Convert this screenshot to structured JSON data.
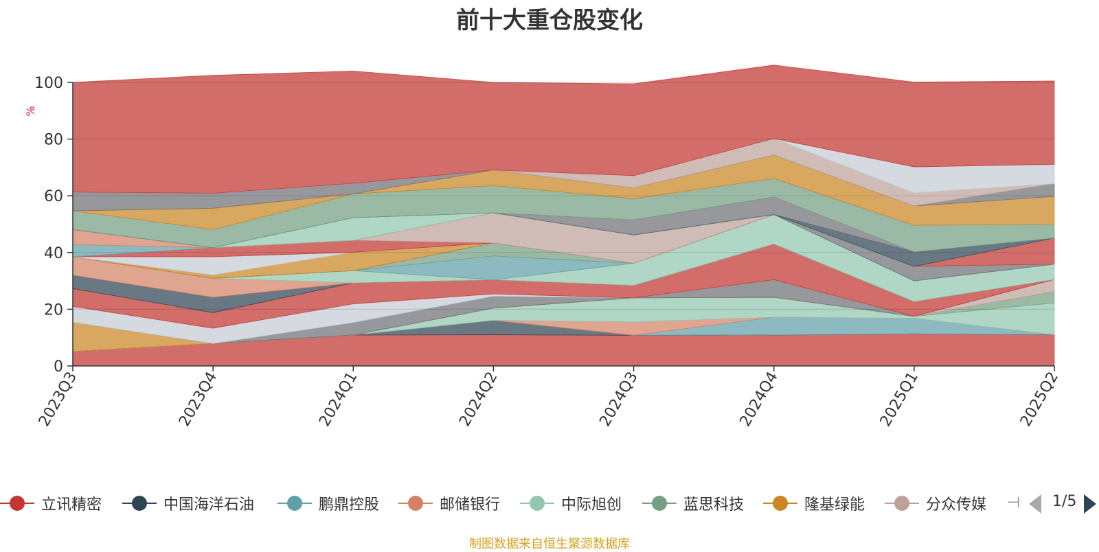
{
  "chart_data": {
    "type": "area",
    "stacked": true,
    "title": "前十大重仓股变化",
    "ylabel": "%",
    "ylim": [
      0,
      100
    ],
    "yticks": [
      0,
      20,
      40,
      60,
      80,
      100
    ],
    "grid": true,
    "categories": [
      "2023Q3",
      "2023Q4",
      "2024Q1",
      "2024Q2",
      "2024Q3",
      "2024Q4",
      "2025Q1",
      "2025Q2"
    ],
    "series": [
      {
        "name": "立讯精密",
        "color": "#c23531",
        "values": [
          5.1,
          7.9,
          10.9,
          11.0,
          10.8,
          10.9,
          11.3,
          11.0
        ]
      },
      {
        "name": "中国海洋石油",
        "color": "#2f4554",
        "values": [
          0,
          0,
          0,
          5.1,
          0,
          0,
          0,
          0
        ]
      },
      {
        "name": "鹏鼎控股",
        "color": "#61a0a8",
        "values": [
          0,
          0,
          0,
          0,
          0,
          6.3,
          5.5,
          0
        ]
      },
      {
        "name": "邮储银行",
        "color": "#d48265",
        "values": [
          0,
          0,
          0,
          0,
          4.7,
          0,
          0,
          0
        ]
      },
      {
        "name": "中际旭创",
        "color": "#91c7ae",
        "values": [
          0,
          0,
          0,
          4.3,
          8.5,
          7.0,
          0.7,
          11.2
        ]
      },
      {
        "name": "蓝思科技",
        "color": "#749f83",
        "values": [
          0,
          0,
          0,
          0,
          0,
          0,
          0,
          4.0
        ]
      },
      {
        "name": "隆基绿能",
        "color": "#ca8622",
        "values": [
          10.3,
          0,
          0,
          0,
          0,
          0,
          0,
          0
        ]
      },
      {
        "name": "分众传媒",
        "color": "#bda29a",
        "values": [
          0,
          0,
          0,
          0,
          0,
          0,
          0,
          4.3
        ]
      },
      {
        "name": "",
        "color": "#6e7074",
        "values": [
          0,
          0,
          4.4,
          4.2,
          0,
          6.2,
          0,
          0
        ]
      },
      {
        "name": "",
        "color": "#c4ccd3",
        "values": [
          5.6,
          5.4,
          6.6,
          0.8,
          0,
          0,
          0,
          0
        ]
      },
      {
        "name": "",
        "color": "#c23531",
        "values": [
          6.3,
          5.5,
          7.4,
          5.0,
          4.4,
          12.6,
          5.2,
          0
        ]
      },
      {
        "name": "",
        "color": "#2f4554",
        "values": [
          4.7,
          5.4,
          0,
          0,
          0,
          0,
          0,
          0
        ]
      },
      {
        "name": "",
        "color": "#d48265",
        "values": [
          6.5,
          6.7,
          0,
          0,
          0,
          0,
          0,
          0
        ]
      },
      {
        "name": "",
        "color": "#91c7ae",
        "values": [
          0,
          0,
          4.3,
          0,
          7.8,
          10.4,
          7.3,
          5.4
        ]
      },
      {
        "name": "",
        "color": "#61a0a8",
        "values": [
          0,
          0,
          0,
          8.4,
          0,
          0,
          0,
          0
        ]
      },
      {
        "name": "",
        "color": "#749f83",
        "values": [
          0,
          0,
          0,
          4.6,
          0,
          0,
          0,
          0
        ]
      },
      {
        "name": "",
        "color": "#6e7074",
        "values": [
          0,
          0,
          0,
          0,
          0,
          0,
          5.1,
          0
        ]
      },
      {
        "name": "",
        "color": "#ca8622",
        "values": [
          0,
          1.2,
          6.5,
          0,
          0,
          0,
          0,
          0
        ]
      },
      {
        "name": "",
        "color": "#c4ccd3",
        "values": [
          0,
          6.4,
          0,
          0,
          0,
          0,
          0,
          0
        ]
      },
      {
        "name": "",
        "color": "#c23531",
        "values": [
          0,
          3.2,
          4.2,
          0,
          0,
          0,
          0,
          9.2
        ]
      },
      {
        "name": "",
        "color": "#bda29a",
        "values": [
          0,
          0,
          0,
          10.6,
          10.0,
          0,
          0,
          0
        ]
      },
      {
        "name": "",
        "color": "#61a0a8",
        "values": [
          4.3,
          0,
          0,
          0,
          0,
          0,
          0,
          0
        ]
      },
      {
        "name": "",
        "color": "#d48265",
        "values": [
          5.3,
          0,
          0,
          0,
          0,
          0,
          0,
          0
        ]
      },
      {
        "name": "",
        "color": "#91c7ae",
        "values": [
          0,
          0,
          8.0,
          0,
          0,
          0,
          0,
          0
        ]
      },
      {
        "name": "",
        "color": "#2f4554",
        "values": [
          0,
          0,
          0,
          0,
          0,
          0,
          5.1,
          0
        ]
      },
      {
        "name": "",
        "color": "#6e7074",
        "values": [
          0,
          0,
          0,
          0,
          5.3,
          6.2,
          0,
          0
        ]
      },
      {
        "name": "",
        "color": "#749f83",
        "values": [
          6.6,
          6.4,
          8.4,
          9.6,
          7.5,
          6.5,
          9.4,
          4.9
        ]
      },
      {
        "name": "",
        "color": "#ca8622",
        "values": [
          0,
          7.5,
          0,
          5.5,
          3.8,
          8.3,
          6.8,
          9.8
        ]
      },
      {
        "name": "",
        "color": "#6e7074",
        "values": [
          6.6,
          5.3,
          3.7,
          0,
          0,
          0,
          0,
          4.5
        ]
      },
      {
        "name": "",
        "color": "#bda29a",
        "values": [
          0,
          0,
          0,
          0,
          4.3,
          5.8,
          4.6,
          0
        ]
      },
      {
        "name": "",
        "color": "#c4ccd3",
        "values": [
          0,
          0,
          0,
          0,
          0,
          0,
          9.2,
          6.8
        ]
      },
      {
        "name": "",
        "color": "#c23531",
        "values": [
          38.7,
          41.6,
          39.6,
          30.9,
          32.4,
          25.9,
          29.9,
          29.4
        ]
      }
    ]
  },
  "legend": {
    "items": [
      {
        "label": "立讯精密",
        "color": "#c23531"
      },
      {
        "label": "中国海洋石油",
        "color": "#2f4554"
      },
      {
        "label": "鹏鼎控股",
        "color": "#61a0a8"
      },
      {
        "label": "邮储银行",
        "color": "#d48265"
      },
      {
        "label": "中际旭创",
        "color": "#91c7ae"
      },
      {
        "label": "蓝思科技",
        "color": "#749f83"
      },
      {
        "label": "隆基绿能",
        "color": "#ca8622"
      },
      {
        "label": "分众传媒",
        "color": "#bda29a"
      }
    ],
    "page_text": "1/5"
  },
  "footer": "制图数据来自恒生聚源数据库"
}
